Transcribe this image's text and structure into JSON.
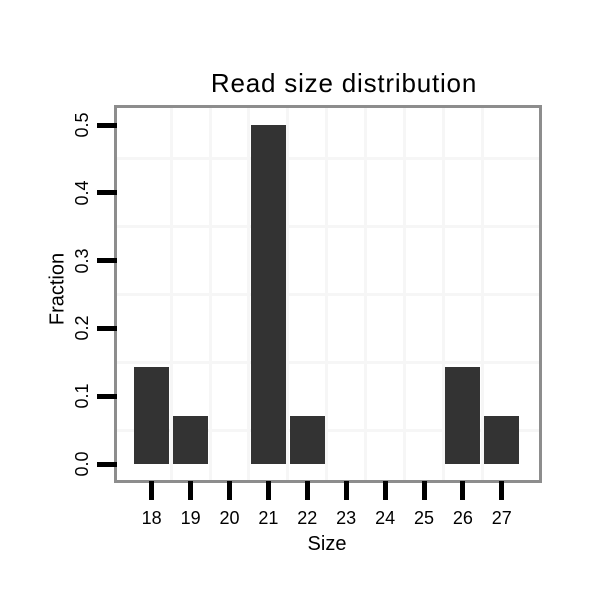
{
  "chart_data": {
    "type": "bar",
    "title": "Read size distribution",
    "xlabel": "Size",
    "ylabel": "Fraction",
    "categories": [
      "18",
      "19",
      "20",
      "21",
      "22",
      "23",
      "24",
      "25",
      "26",
      "27"
    ],
    "values": [
      0.143,
      0.071,
      0,
      0.5,
      0.071,
      0,
      0,
      0,
      0.143,
      0.071
    ],
    "ylim": [
      0,
      0.5
    ],
    "yticks": [
      0,
      0.1,
      0.2,
      0.3,
      0.4,
      0.5
    ],
    "ytick_labels": [
      "0.0",
      "0.1",
      "0.2",
      "0.3",
      "0.4",
      "0.5"
    ],
    "legend": "none",
    "grid": "minor-only",
    "colors": {
      "bar_fill": "#333333",
      "gridline": "#f6f6f6",
      "panel_border": "#8d8d8d",
      "panel_background": "#ffffff",
      "page_background": "#ffffff",
      "tick": "#000000",
      "text": "#000000"
    }
  }
}
